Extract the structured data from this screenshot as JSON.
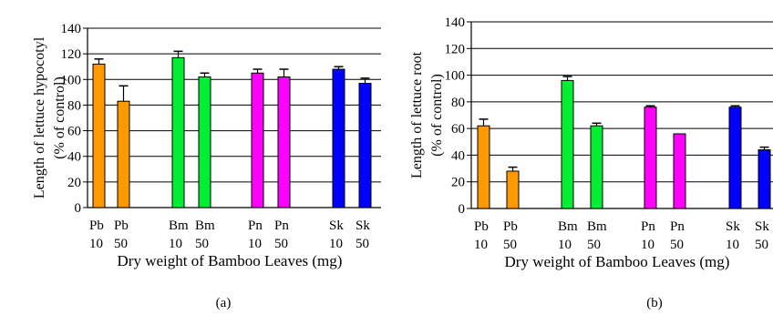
{
  "chart_data": [
    {
      "type": "bar",
      "panel_label": "(a)",
      "ylabel_line1": "Length of lettuce hypocotyl",
      "ylabel_line2": "(% of control)",
      "xlabel": "Dry weight of Bamboo Leaves (mg)",
      "ylim": [
        0,
        140
      ],
      "yticks": [
        "0",
        "20",
        "40",
        "60",
        "80",
        "100",
        "120",
        "140"
      ],
      "grid": true,
      "categories": [
        {
          "name": "Pb",
          "dose": "10",
          "value": 112,
          "err": 4,
          "color": "#FF9900"
        },
        {
          "name": "Pb",
          "dose": "50",
          "value": 83,
          "err": 12,
          "color": "#FF9900"
        },
        {
          "name": "Bm",
          "dose": "10",
          "value": 117,
          "err": 5,
          "color": "#00EE33"
        },
        {
          "name": "Bm",
          "dose": "50",
          "value": 102,
          "err": 3,
          "color": "#00EE33"
        },
        {
          "name": "Pn",
          "dose": "10",
          "value": 105,
          "err": 3,
          "color": "#FF00FF"
        },
        {
          "name": "Pn",
          "dose": "50",
          "value": 102,
          "err": 6,
          "color": "#FF00FF"
        },
        {
          "name": "Sk",
          "dose": "10",
          "value": 108,
          "err": 2,
          "color": "#0000FF"
        },
        {
          "name": "Sk",
          "dose": "50",
          "value": 97,
          "err": 4,
          "color": "#0000FF"
        }
      ]
    },
    {
      "type": "bar",
      "panel_label": "(b)",
      "ylabel_line1": "Length of lettuce root",
      "ylabel_line2": "(% of control)",
      "xlabel": "Dry weight of Bamboo Leaves (mg)",
      "ylim": [
        0,
        140
      ],
      "yticks": [
        "0",
        "20",
        "40",
        "60",
        "80",
        "100",
        "120",
        "140"
      ],
      "grid": true,
      "categories": [
        {
          "name": "Pb",
          "dose": "10",
          "value": 62,
          "err": 5,
          "color": "#FF9900"
        },
        {
          "name": "Pb",
          "dose": "50",
          "value": 28,
          "err": 3,
          "color": "#FF9900"
        },
        {
          "name": "Bm",
          "dose": "10",
          "value": 96,
          "err": 3,
          "color": "#00EE33"
        },
        {
          "name": "Bm",
          "dose": "50",
          "value": 62,
          "err": 2,
          "color": "#00EE33"
        },
        {
          "name": "Pn",
          "dose": "10",
          "value": 76,
          "err": 1,
          "color": "#FF00FF"
        },
        {
          "name": "Pn",
          "dose": "50",
          "value": 56,
          "err": 0,
          "color": "#FF00FF"
        },
        {
          "name": "Sk",
          "dose": "10",
          "value": 76,
          "err": 1,
          "color": "#0000FF"
        },
        {
          "name": "Sk",
          "dose": "50",
          "value": 44,
          "err": 2,
          "color": "#0000FF"
        }
      ]
    }
  ]
}
